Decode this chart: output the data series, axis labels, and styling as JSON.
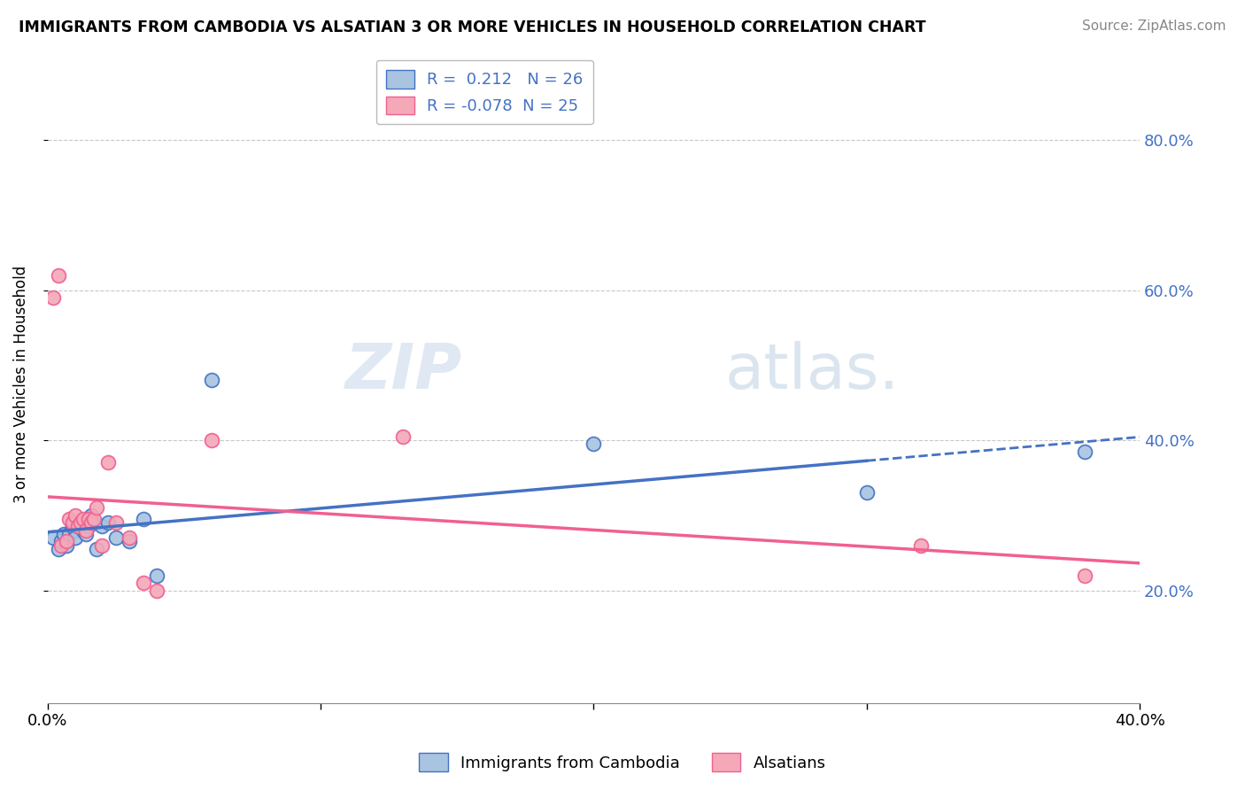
{
  "title": "IMMIGRANTS FROM CAMBODIA VS ALSATIAN 3 OR MORE VEHICLES IN HOUSEHOLD CORRELATION CHART",
  "source": "Source: ZipAtlas.com",
  "ylabel": "3 or more Vehicles in Household",
  "xlabel_blue": "Immigrants from Cambodia",
  "xlabel_pink": "Alsatians",
  "r_blue": 0.212,
  "n_blue": 26,
  "r_pink": -0.078,
  "n_pink": 25,
  "xlim": [
    0.0,
    0.4
  ],
  "ylim": [
    0.05,
    0.9
  ],
  "yticks": [
    0.2,
    0.4,
    0.6,
    0.8
  ],
  "xtick_positions": [
    0.0,
    0.1,
    0.2,
    0.3,
    0.4
  ],
  "color_blue": "#a8c4e0",
  "color_pink": "#f4a8b8",
  "line_blue": "#4472c4",
  "line_pink": "#f06090",
  "blue_x": [
    0.002,
    0.004,
    0.005,
    0.006,
    0.007,
    0.008,
    0.009,
    0.01,
    0.01,
    0.011,
    0.012,
    0.013,
    0.014,
    0.015,
    0.016,
    0.018,
    0.02,
    0.022,
    0.025,
    0.03,
    0.035,
    0.04,
    0.06,
    0.2,
    0.3,
    0.38
  ],
  "blue_y": [
    0.27,
    0.255,
    0.265,
    0.275,
    0.26,
    0.275,
    0.285,
    0.28,
    0.27,
    0.285,
    0.29,
    0.28,
    0.275,
    0.285,
    0.3,
    0.255,
    0.285,
    0.29,
    0.27,
    0.265,
    0.295,
    0.22,
    0.48,
    0.395,
    0.33,
    0.385
  ],
  "pink_x": [
    0.002,
    0.004,
    0.005,
    0.007,
    0.008,
    0.009,
    0.01,
    0.011,
    0.012,
    0.013,
    0.014,
    0.015,
    0.016,
    0.017,
    0.018,
    0.02,
    0.022,
    0.025,
    0.03,
    0.035,
    0.04,
    0.06,
    0.13,
    0.32,
    0.38
  ],
  "pink_y": [
    0.59,
    0.62,
    0.26,
    0.265,
    0.295,
    0.29,
    0.3,
    0.285,
    0.29,
    0.295,
    0.28,
    0.295,
    0.29,
    0.295,
    0.31,
    0.26,
    0.37,
    0.29,
    0.27,
    0.21,
    0.2,
    0.4,
    0.405,
    0.26,
    0.22
  ]
}
